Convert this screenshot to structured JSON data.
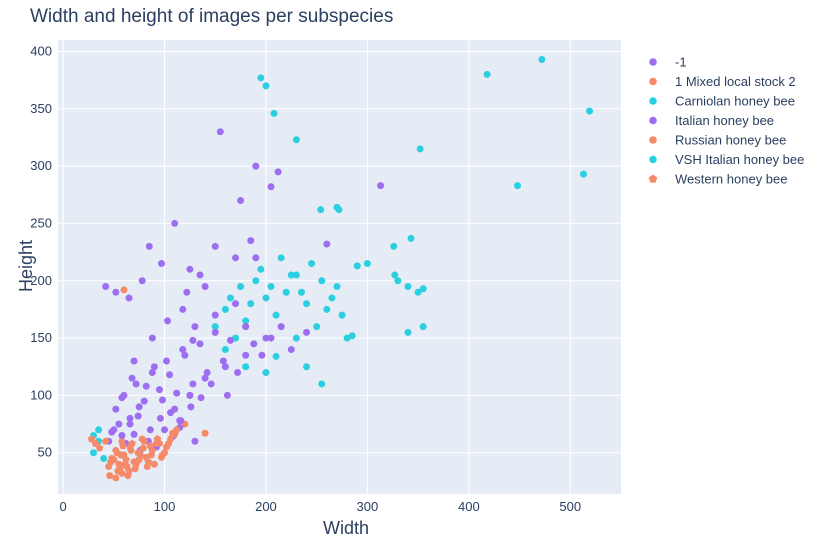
{
  "chart_data": {
    "type": "scatter",
    "title": "Width and height of images per subspecies",
    "xlabel": "Width",
    "ylabel": "Height",
    "xlim": [
      -5,
      550
    ],
    "ylim": [
      14,
      410
    ],
    "x_ticks": [
      0,
      100,
      200,
      300,
      400,
      500
    ],
    "y_ticks": [
      50,
      100,
      150,
      200,
      250,
      300,
      350,
      400
    ],
    "grid": true,
    "legend_position": "right",
    "colors": {
      "background": "#e5ecf6",
      "grid": "#ffffff",
      "text": "#2a3f5f"
    },
    "series": [
      {
        "name": "-1",
        "color": "#9d6ef0",
        "marker": "circle",
        "points": [
          [
            58,
            98
          ],
          [
            66,
            80
          ],
          [
            72,
            110
          ],
          [
            80,
            95
          ],
          [
            88,
            120
          ],
          [
            95,
            105
          ],
          [
            102,
            130
          ],
          [
            110,
            88
          ],
          [
            118,
            140
          ],
          [
            125,
            100
          ],
          [
            130,
            160
          ],
          [
            140,
            115
          ],
          [
            150,
            170
          ],
          [
            160,
            125
          ],
          [
            170,
            180
          ],
          [
            180,
            135
          ],
          [
            190,
            220
          ],
          [
            200,
            150
          ],
          [
            65,
            185
          ],
          [
            78,
            200
          ],
          [
            85,
            230
          ],
          [
            97,
            215
          ],
          [
            110,
            250
          ],
          [
            122,
            190
          ],
          [
            135,
            205
          ],
          [
            155,
            330
          ],
          [
            175,
            270
          ],
          [
            190,
            300
          ],
          [
            205,
            282
          ],
          [
            260,
            232
          ],
          [
            313,
            283
          ],
          [
            212,
            295
          ],
          [
            48,
            68
          ],
          [
            55,
            75
          ],
          [
            62,
            58
          ],
          [
            70,
            66
          ],
          [
            76,
            52
          ],
          [
            84,
            60
          ],
          [
            92,
            55
          ],
          [
            100,
            70
          ],
          [
            108,
            64
          ],
          [
            115,
            78
          ],
          [
            42,
            195
          ],
          [
            52,
            190
          ]
        ]
      },
      {
        "name": "1 Mixed local stock 2",
        "color": "#f58a6a",
        "marker": "circle",
        "points": [
          [
            48,
            45
          ],
          [
            52,
            52
          ],
          [
            55,
            40
          ],
          [
            58,
            60
          ],
          [
            60,
            48
          ],
          [
            63,
            38
          ],
          [
            66,
            55
          ],
          [
            70,
            42
          ],
          [
            74,
            50
          ],
          [
            78,
            62
          ],
          [
            82,
            46
          ],
          [
            86,
            56
          ],
          [
            90,
            40
          ],
          [
            95,
            58
          ],
          [
            100,
            50
          ],
          [
            108,
            67
          ],
          [
            120,
            75
          ],
          [
            140,
            67
          ],
          [
            60,
            192
          ]
        ]
      },
      {
        "name": "Carniolan honey bee",
        "color": "#2ccfe0",
        "marker": "circle",
        "points": [
          [
            150,
            160
          ],
          [
            160,
            175
          ],
          [
            170,
            150
          ],
          [
            180,
            165
          ],
          [
            190,
            200
          ],
          [
            200,
            185
          ],
          [
            210,
            170
          ],
          [
            220,
            190
          ],
          [
            230,
            205
          ],
          [
            240,
            180
          ],
          [
            250,
            160
          ],
          [
            260,
            175
          ],
          [
            270,
            195
          ],
          [
            280,
            150
          ],
          [
            200,
            370
          ],
          [
            195,
            377
          ],
          [
            208,
            346
          ],
          [
            230,
            323
          ],
          [
            272,
            262
          ],
          [
            290,
            213
          ],
          [
            330,
            200
          ],
          [
            343,
            237
          ],
          [
            326,
            230
          ],
          [
            355,
            160
          ],
          [
            340,
            155
          ],
          [
            355,
            193
          ],
          [
            327,
            205
          ]
        ]
      },
      {
        "name": "Italian honey bee",
        "color": "#9d6ef0",
        "marker": "circle",
        "points": [
          [
            52,
            88
          ],
          [
            60,
            100
          ],
          [
            68,
            115
          ],
          [
            75,
            90
          ],
          [
            82,
            108
          ],
          [
            90,
            125
          ],
          [
            98,
            96
          ],
          [
            105,
            118
          ],
          [
            112,
            102
          ],
          [
            120,
            135
          ],
          [
            128,
            110
          ],
          [
            135,
            145
          ],
          [
            142,
            120
          ],
          [
            150,
            155
          ],
          [
            158,
            130
          ],
          [
            165,
            148
          ],
          [
            172,
            120
          ],
          [
            180,
            160
          ],
          [
            188,
            145
          ],
          [
            196,
            135
          ],
          [
            205,
            150
          ],
          [
            215,
            160
          ],
          [
            225,
            140
          ],
          [
            240,
            155
          ],
          [
            70,
            130
          ],
          [
            88,
            150
          ],
          [
            103,
            165
          ],
          [
            118,
            175
          ],
          [
            128,
            148
          ],
          [
            146,
            110
          ],
          [
            162,
            100
          ],
          [
            45,
            60
          ],
          [
            50,
            70
          ],
          [
            58,
            65
          ],
          [
            66,
            75
          ],
          [
            74,
            82
          ],
          [
            86,
            70
          ],
          [
            96,
            80
          ],
          [
            106,
            85
          ],
          [
            116,
            78
          ],
          [
            126,
            90
          ],
          [
            136,
            98
          ],
          [
            125,
            100
          ],
          [
            130,
            60
          ],
          [
            115,
            72
          ],
          [
            125,
            210
          ],
          [
            140,
            195
          ],
          [
            170,
            220
          ],
          [
            185,
            235
          ],
          [
            150,
            230
          ]
        ]
      },
      {
        "name": "Russian honey bee",
        "color": "#f58a6a",
        "marker": "circle",
        "points": [
          [
            45,
            38
          ],
          [
            50,
            44
          ],
          [
            54,
            34
          ],
          [
            57,
            48
          ],
          [
            61,
            40
          ],
          [
            64,
            30
          ],
          [
            67,
            52
          ],
          [
            71,
            36
          ],
          [
            75,
            44
          ],
          [
            79,
            54
          ],
          [
            83,
            38
          ],
          [
            87,
            48
          ],
          [
            92,
            58
          ],
          [
            97,
            46
          ],
          [
            102,
            55
          ],
          [
            106,
            62
          ],
          [
            112,
            70
          ],
          [
            46,
            30
          ],
          [
            52,
            28
          ],
          [
            58,
            32
          ]
        ]
      },
      {
        "name": "VSH Italian honey bee",
        "color": "#2ccfe0",
        "marker": "circle",
        "points": [
          [
            165,
            185
          ],
          [
            175,
            195
          ],
          [
            185,
            180
          ],
          [
            195,
            210
          ],
          [
            205,
            195
          ],
          [
            215,
            220
          ],
          [
            225,
            205
          ],
          [
            235,
            190
          ],
          [
            245,
            215
          ],
          [
            255,
            200
          ],
          [
            265,
            185
          ],
          [
            275,
            170
          ],
          [
            285,
            152
          ],
          [
            300,
            215
          ],
          [
            340,
            195
          ],
          [
            352,
            315
          ],
          [
            350,
            190
          ],
          [
            418,
            380
          ],
          [
            472,
            393
          ],
          [
            519,
            348
          ],
          [
            448,
            283
          ],
          [
            513,
            293
          ],
          [
            254,
            262
          ],
          [
            270,
            264
          ],
          [
            160,
            140
          ],
          [
            180,
            125
          ],
          [
            200,
            120
          ],
          [
            210,
            134
          ],
          [
            230,
            150
          ],
          [
            240,
            125
          ],
          [
            255,
            110
          ],
          [
            30,
            50
          ],
          [
            35,
            60
          ],
          [
            40,
            45
          ],
          [
            30,
            65
          ],
          [
            35,
            70
          ]
        ]
      },
      {
        "name": "Western honey bee",
        "color": "#f58a6a",
        "marker": "pentagon",
        "points": [
          [
            47,
            42
          ],
          [
            53,
            50
          ],
          [
            56,
            36
          ],
          [
            59,
            56
          ],
          [
            62,
            44
          ],
          [
            65,
            34
          ],
          [
            68,
            58
          ],
          [
            72,
            40
          ],
          [
            76,
            48
          ],
          [
            80,
            60
          ],
          [
            84,
            42
          ],
          [
            88,
            52
          ],
          [
            93,
            62
          ],
          [
            98,
            48
          ],
          [
            104,
            58
          ],
          [
            110,
            66
          ],
          [
            28,
            62
          ],
          [
            32,
            58
          ],
          [
            36,
            54
          ],
          [
            42,
            60
          ]
        ]
      }
    ]
  }
}
